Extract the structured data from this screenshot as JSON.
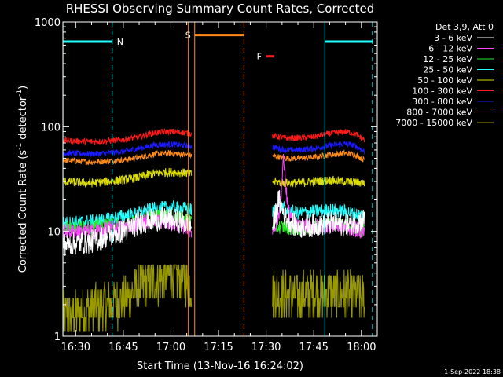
{
  "chart_data": {
    "type": "line",
    "title": "RHESSI Observing Summary Count Rates, Corrected",
    "xlabel": "Start Time (13-Nov-16 16:24:02)",
    "ylabel_parts": [
      "Corrected Count Rate (s",
      "-1",
      " detector",
      "-1",
      ")"
    ],
    "ylabel": "Corrected Count Rate (s-1 detector-1)",
    "yscale": "log",
    "ylim": [
      1,
      1000
    ],
    "xlim_minutes": [
      -4.03,
      95
    ],
    "x_unit_note": "minutes after 16:30",
    "yticks": [
      {
        "value": 1,
        "label": "1"
      },
      {
        "value": 10,
        "label": "10"
      },
      {
        "value": 100,
        "label": "100"
      },
      {
        "value": 1000,
        "label": "1000"
      }
    ],
    "xticks": [
      {
        "value": 0,
        "label": "16:30"
      },
      {
        "value": 15,
        "label": "16:45"
      },
      {
        "value": 30,
        "label": "17:00"
      },
      {
        "value": 45,
        "label": "17:15"
      },
      {
        "value": 60,
        "label": "17:30"
      },
      {
        "value": 75,
        "label": "17:45"
      },
      {
        "value": 90,
        "label": "18:00"
      }
    ],
    "legend": {
      "placement": "right",
      "header": "Det 3,9, Att 0",
      "entries": [
        {
          "label": "3 - 6 keV",
          "color": "#ffffff"
        },
        {
          "label": "6 - 12 keV",
          "color": "#ff44ff"
        },
        {
          "label": "12 - 25 keV",
          "color": "#22ee22"
        },
        {
          "label": "25 - 50 keV",
          "color": "#22ffff"
        },
        {
          "label": "50 - 100 keV",
          "color": "#dddd00"
        },
        {
          "label": "100 - 300 keV",
          "color": "#ff1a1a"
        },
        {
          "label": "300 - 800 keV",
          "color": "#1a1aff"
        },
        {
          "label": "800 - 7000 keV",
          "color": "#ff8c1a"
        },
        {
          "label": "7000 - 15000 keV",
          "color": "#999900"
        }
      ]
    },
    "series": [
      {
        "name": "3 - 6 keV",
        "color": "#ffffff",
        "noise": 0.12,
        "segments": [
          {
            "x": [
              -4,
              5,
              10,
              15,
              20,
              25,
              30,
              35,
              36.5
            ],
            "y": [
              7.5,
              8,
              9,
              10,
              12,
              13,
              13,
              12,
              11
            ]
          },
          {
            "x": [
              62,
              64,
              66,
              68,
              70,
              75,
              80,
              85,
              91
            ],
            "y": [
              11,
              20,
              14,
              12,
              11,
              11.5,
              12,
              11.5,
              13
            ]
          }
        ]
      },
      {
        "name": "6 - 12 keV",
        "color": "#ff44ff",
        "noise": 0.08,
        "segments": [
          {
            "x": [
              -4,
              5,
              10,
              15,
              20,
              25,
              30,
              35,
              36.5
            ],
            "y": [
              10,
              10,
              10.5,
              11,
              12,
              13,
              12,
              11,
              10
            ]
          },
          {
            "x": [
              62,
              64,
              65,
              65.5,
              66,
              67,
              68,
              70,
              75,
              80,
              85,
              91
            ],
            "y": [
              10,
              14,
              30,
              52,
              30,
              16,
              13,
              11,
              11,
              11.5,
              11,
              10
            ]
          }
        ]
      },
      {
        "name": "12 - 25 keV",
        "color": "#22ee22",
        "noise": 0.07,
        "segments": [
          {
            "x": [
              -4,
              5,
              10,
              15,
              20,
              25,
              30,
              35,
              36.5
            ],
            "y": [
              11,
              11,
              11.5,
              11.5,
              12.5,
              14,
              14,
              13,
              13
            ]
          },
          {
            "x": [
              62,
              66,
              70,
              75,
              80,
              85,
              91
            ],
            "y": [
              11,
              11,
              10.5,
              11,
              12,
              11.5,
              10
            ]
          }
        ]
      },
      {
        "name": "25 - 50 keV",
        "color": "#22ffff",
        "noise": 0.07,
        "segments": [
          {
            "x": [
              -4,
              5,
              10,
              15,
              20,
              25,
              30,
              35,
              36.5
            ],
            "y": [
              12,
              12.5,
              13,
              14,
              15,
              16.5,
              17,
              16.5,
              16
            ]
          },
          {
            "x": [
              62,
              64,
              66,
              70,
              75,
              80,
              85,
              91
            ],
            "y": [
              15,
              18,
              16,
              15,
              15.5,
              16,
              15.5,
              14
            ]
          }
        ]
      },
      {
        "name": "50 - 100 keV",
        "color": "#dddd00",
        "noise": 0.045,
        "segments": [
          {
            "x": [
              -4,
              5,
              10,
              15,
              20,
              25,
              30,
              35,
              36.5
            ],
            "y": [
              30,
              29,
              30,
              31,
              33,
              36,
              37,
              36,
              35
            ]
          },
          {
            "x": [
              62,
              66,
              70,
              75,
              80,
              85,
              91
            ],
            "y": [
              30,
              29,
              29,
              30,
              31,
              30,
              29
            ]
          }
        ]
      },
      {
        "name": "100 - 300 keV",
        "color": "#ff1a1a",
        "noise": 0.03,
        "segments": [
          {
            "x": [
              -4,
              5,
              10,
              15,
              20,
              25,
              30,
              35,
              36.5
            ],
            "y": [
              74,
              72,
              73,
              75,
              80,
              88,
              90,
              87,
              86
            ]
          },
          {
            "x": [
              62,
              66,
              70,
              75,
              80,
              85,
              88,
              91
            ],
            "y": [
              82,
              78,
              78,
              80,
              86,
              90,
              86,
              75
            ]
          }
        ]
      },
      {
        "name": "300 - 800 keV",
        "color": "#1a1aff",
        "noise": 0.03,
        "segments": [
          {
            "x": [
              -4,
              5,
              10,
              15,
              20,
              25,
              30,
              35,
              36.5
            ],
            "y": [
              56,
              55,
              56,
              58,
              62,
              67,
              68,
              66,
              65
            ]
          },
          {
            "x": [
              62,
              66,
              70,
              75,
              80,
              85,
              88,
              91
            ],
            "y": [
              64,
              60,
              60,
              62,
              66,
              69,
              66,
              58
            ]
          }
        ]
      },
      {
        "name": "800 - 7000 keV",
        "color": "#ff8c1a",
        "noise": 0.03,
        "segments": [
          {
            "x": [
              -4,
              5,
              10,
              15,
              20,
              25,
              30,
              35,
              36.5
            ],
            "y": [
              48,
              46,
              47,
              48,
              51,
              55,
              56,
              54,
              53
            ]
          },
          {
            "x": [
              62,
              66,
              70,
              75,
              80,
              85,
              88,
              91
            ],
            "y": [
              53,
              50,
              50,
              51,
              54,
              56,
              54,
              48
            ]
          }
        ]
      },
      {
        "name": "7000 - 15000 keV",
        "color": "#999900",
        "noise": 0,
        "steps": true,
        "segments": [
          {
            "x": [
              -4,
              15,
              20,
              30,
              36.5
            ],
            "y": [
              1.5,
              2.2,
              3,
              3.8,
              3.2
            ]
          },
          {
            "x": [
              62,
              70,
              75,
              85,
              91
            ],
            "y": [
              2.6,
              2.4,
              2.6,
              2.5,
              2.3
            ]
          }
        ]
      }
    ],
    "annotations": {
      "saa_markers": [
        {
          "label": "N",
          "color": "#22ffff",
          "x_start": -4,
          "x_end": 11.5,
          "y": 650,
          "dashed_x": 11.5
        },
        {
          "label": "",
          "color": "#22ffff",
          "x_start": 78.5,
          "x_end": 93.5,
          "y": 650,
          "dashed_x": 93.5
        }
      ],
      "night_markers": [
        {
          "label": "S",
          "color": "#ff8c1a",
          "x_start": 37.5,
          "x_end": 53,
          "y": 750,
          "solid_x": [
            35.5,
            37.5
          ],
          "dashed_x": 53
        }
      ],
      "flare_markers": [
        {
          "label": "F",
          "color": "#ff1a1a",
          "x_start": 60,
          "x_end": 62.5,
          "y": 470
        }
      ]
    }
  },
  "footer": {
    "date_stamp": "1-Sep-2022 18:38"
  }
}
